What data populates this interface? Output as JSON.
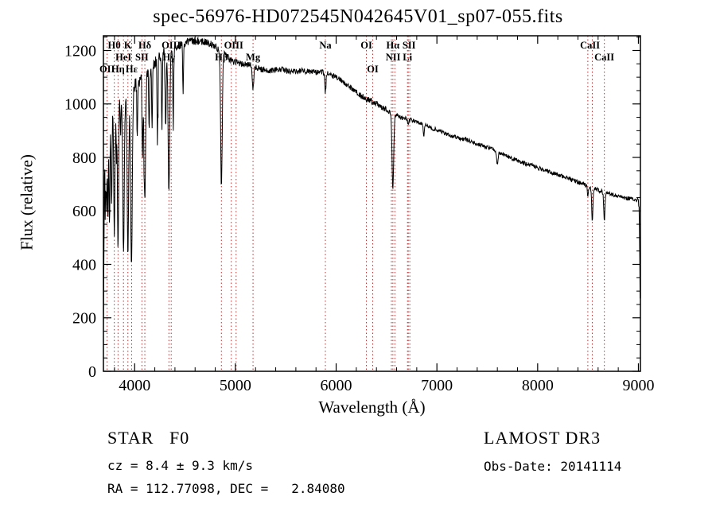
{
  "chart_data": {
    "type": "line",
    "title": "spec-56976-HD072545N042645V01_sp07-055.fits",
    "xlabel": "Wavelength (Å)",
    "ylabel": "Flux (relative)",
    "xlim": [
      3690,
      9020
    ],
    "ylim": [
      0,
      1255
    ],
    "xticks": [
      4000,
      5000,
      6000,
      7000,
      8000,
      9000
    ],
    "yticks": [
      0,
      200,
      400,
      600,
      800,
      1000,
      1200
    ],
    "grid": false,
    "series_color": "#000000",
    "marker_line_color": "#b43232",
    "continuum_points": [
      [
        3690,
        150
      ],
      [
        3700,
        700
      ],
      [
        3710,
        960
      ],
      [
        3730,
        950
      ],
      [
        3760,
        980
      ],
      [
        3800,
        1010
      ],
      [
        3850,
        1030
      ],
      [
        3900,
        1010
      ],
      [
        3950,
        1020
      ],
      [
        4000,
        1070
      ],
      [
        4050,
        1080
      ],
      [
        4150,
        1130
      ],
      [
        4250,
        1180
      ],
      [
        4350,
        1200
      ],
      [
        4450,
        1220
      ],
      [
        4550,
        1235
      ],
      [
        4650,
        1235
      ],
      [
        4750,
        1225
      ],
      [
        4850,
        1200
      ],
      [
        4950,
        1165
      ],
      [
        5050,
        1150
      ],
      [
        5150,
        1145
      ],
      [
        5250,
        1130
      ],
      [
        5350,
        1125
      ],
      [
        5450,
        1130
      ],
      [
        5550,
        1120
      ],
      [
        5650,
        1125
      ],
      [
        5750,
        1120
      ],
      [
        5850,
        1120
      ],
      [
        5950,
        1110
      ],
      [
        6050,
        1090
      ],
      [
        6150,
        1060
      ],
      [
        6250,
        1030
      ],
      [
        6350,
        1010
      ],
      [
        6450,
        990
      ],
      [
        6550,
        965
      ],
      [
        6650,
        950
      ],
      [
        6750,
        940
      ],
      [
        6850,
        925
      ],
      [
        6950,
        910
      ],
      [
        7050,
        895
      ],
      [
        7150,
        880
      ],
      [
        7250,
        870
      ],
      [
        7350,
        858
      ],
      [
        7450,
        845
      ],
      [
        7550,
        830
      ],
      [
        7650,
        812
      ],
      [
        7750,
        795
      ],
      [
        7850,
        780
      ],
      [
        7950,
        768
      ],
      [
        8050,
        755
      ],
      [
        8150,
        742
      ],
      [
        8250,
        730
      ],
      [
        8350,
        715
      ],
      [
        8450,
        700
      ],
      [
        8550,
        685
      ],
      [
        8650,
        672
      ],
      [
        8750,
        660
      ],
      [
        8850,
        650
      ],
      [
        8950,
        643
      ],
      [
        9000,
        640
      ],
      [
        9008,
        600
      ],
      [
        9016,
        320
      ],
      [
        9020,
        140
      ]
    ],
    "absorption_lines": [
      {
        "center": 3712,
        "flux": 680,
        "sigma": 4
      },
      {
        "center": 3722,
        "flux": 640,
        "sigma": 4
      },
      {
        "center": 3734,
        "flux": 580,
        "sigma": 4
      },
      {
        "center": 3750,
        "flux": 540,
        "sigma": 5
      },
      {
        "center": 3771,
        "flux": 600,
        "sigma": 5
      },
      {
        "center": 3798,
        "flux": 500,
        "sigma": 6
      },
      {
        "center": 3819,
        "flux": 820,
        "sigma": 4
      },
      {
        "center": 3835,
        "flux": 470,
        "sigma": 6
      },
      {
        "center": 3860,
        "flux": 880,
        "sigma": 4
      },
      {
        "center": 3889,
        "flux": 440,
        "sigma": 7
      },
      {
        "center": 3933,
        "flux": 420,
        "sigma": 7
      },
      {
        "center": 3968,
        "flux": 380,
        "sigma": 8
      },
      {
        "center": 4026,
        "flux": 860,
        "sigma": 4
      },
      {
        "center": 4077,
        "flux": 790,
        "sigma": 4
      },
      {
        "center": 4101,
        "flux": 640,
        "sigma": 8
      },
      {
        "center": 4144,
        "flux": 890,
        "sigma": 4
      },
      {
        "center": 4173,
        "flux": 920,
        "sigma": 4
      },
      {
        "center": 4226,
        "flux": 860,
        "sigma": 4
      },
      {
        "center": 4271,
        "flux": 920,
        "sigma": 4
      },
      {
        "center": 4308,
        "flux": 900,
        "sigma": 5
      },
      {
        "center": 4340,
        "flux": 670,
        "sigma": 8
      },
      {
        "center": 4383,
        "flux": 910,
        "sigma": 4
      },
      {
        "center": 4481,
        "flux": 1050,
        "sigma": 4
      },
      {
        "center": 4861,
        "flux": 690,
        "sigma": 8
      },
      {
        "center": 5175,
        "flux": 1055,
        "sigma": 7
      },
      {
        "center": 5893,
        "flux": 1040,
        "sigma": 6
      },
      {
        "center": 6300,
        "flux": 1000,
        "sigma": 4
      },
      {
        "center": 6563,
        "flux": 680,
        "sigma": 8
      },
      {
        "center": 6716,
        "flux": 915,
        "sigma": 4
      },
      {
        "center": 6870,
        "flux": 880,
        "sigma": 5
      },
      {
        "center": 7600,
        "flux": 775,
        "sigma": 7
      },
      {
        "center": 8498,
        "flux": 650,
        "sigma": 5
      },
      {
        "center": 8542,
        "flux": 560,
        "sigma": 6
      },
      {
        "center": 8662,
        "flux": 565,
        "sigma": 6
      }
    ],
    "line_markers": [
      {
        "label": "OII",
        "row": 2,
        "wavelengths": [
          3727
        ]
      },
      {
        "label": "Hθ",
        "row": 0,
        "wavelengths": [
          3798
        ]
      },
      {
        "label": "Hη",
        "row": 2,
        "wavelengths": [
          3835
        ]
      },
      {
        "label": "HeI",
        "row": 1,
        "wavelengths": [
          3889
        ]
      },
      {
        "label": "K",
        "row": 0,
        "wavelengths": [
          3933
        ]
      },
      {
        "label": "Hε",
        "row": 2,
        "wavelengths": [
          3970
        ]
      },
      {
        "label": "SII",
        "row": 1,
        "wavelengths": [
          4072
        ]
      },
      {
        "label": "Hδ",
        "row": 0,
        "wavelengths": [
          4101
        ]
      },
      {
        "label": "Hγ",
        "row": 1,
        "wavelengths": [
          4340
        ]
      },
      {
        "label": "OIII",
        "row": 0,
        "wavelengths": [
          4363
        ]
      },
      {
        "label": "Hβ",
        "row": 1,
        "wavelengths": [
          4861
        ]
      },
      {
        "label": "OIII",
        "row": 0,
        "wavelengths": [
          4959,
          5007
        ]
      },
      {
        "label": "Mg",
        "row": 1,
        "wavelengths": [
          5175
        ]
      },
      {
        "label": "Na",
        "row": 0,
        "wavelengths": [
          5893
        ]
      },
      {
        "label": "OI",
        "row": 0,
        "wavelengths": [
          6300
        ]
      },
      {
        "label": "OI",
        "row": 2,
        "wavelengths": [
          6363
        ]
      },
      {
        "label": "Hα",
        "row": 0,
        "wavelengths": [
          6563
        ]
      },
      {
        "label": "NII",
        "row": 1,
        "wavelengths": [
          6548,
          6583
        ]
      },
      {
        "label": "Li",
        "row": 1,
        "wavelengths": [
          6708
        ]
      },
      {
        "label": "SII",
        "row": 0,
        "wavelengths": [
          6716,
          6731
        ]
      },
      {
        "label": "CaII",
        "row": 0,
        "wavelengths": [
          8498,
          8542
        ]
      },
      {
        "label": "CaII",
        "row": 1,
        "wavelengths": [
          8662
        ]
      }
    ],
    "noise_seed": 20141114
  },
  "footer": {
    "class_line": "STAR   F0",
    "cz_line": "cz = 8.4 ± 9.3 km/s",
    "radec_line": "RA = 112.77098, DEC =   2.84080",
    "survey": "LAMOST DR3",
    "obs_date": "Obs-Date: 20141114"
  }
}
